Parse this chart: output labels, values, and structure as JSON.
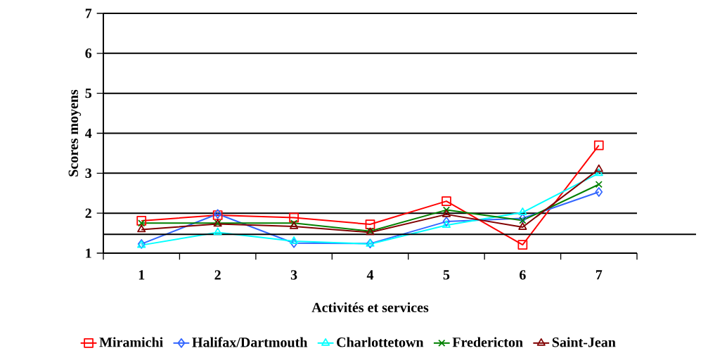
{
  "chart_data": {
    "type": "line",
    "xlabel": "Activités et services",
    "ylabel": "Scores moyens",
    "categories": [
      "1",
      "2",
      "3",
      "4",
      "5",
      "6",
      "7"
    ],
    "ylim": [
      1,
      7
    ],
    "yticks": [
      1,
      2,
      3,
      4,
      5,
      6,
      7
    ],
    "grid": "y",
    "legend": "bottom",
    "ref_lines": [
      {
        "axis": "y",
        "value": 1.47,
        "color": "#000000"
      }
    ],
    "series": [
      {
        "name": "Miramichi",
        "color": "#ff0000",
        "marker": "square",
        "values": [
          1.81,
          1.95,
          1.89,
          1.72,
          2.3,
          1.21,
          3.7
        ]
      },
      {
        "name": "Halifax/Dartmouth",
        "color": "#3366ff",
        "marker": "diamond",
        "values": [
          1.23,
          1.98,
          1.25,
          1.24,
          1.79,
          1.87,
          2.53
        ]
      },
      {
        "name": "Charlottetown",
        "color": "#00ffff",
        "marker": "triangle",
        "values": [
          1.2,
          1.52,
          1.3,
          1.23,
          1.7,
          2.02,
          3.0
        ]
      },
      {
        "name": "Fredericton",
        "color": "#008000",
        "marker": "cross",
        "values": [
          1.75,
          1.75,
          1.75,
          1.55,
          2.08,
          1.82,
          2.72
        ]
      },
      {
        "name": "Saint-Jean",
        "color": "#800000",
        "marker": "triangle",
        "values": [
          1.59,
          1.73,
          1.67,
          1.52,
          1.97,
          1.65,
          3.1
        ]
      }
    ]
  }
}
